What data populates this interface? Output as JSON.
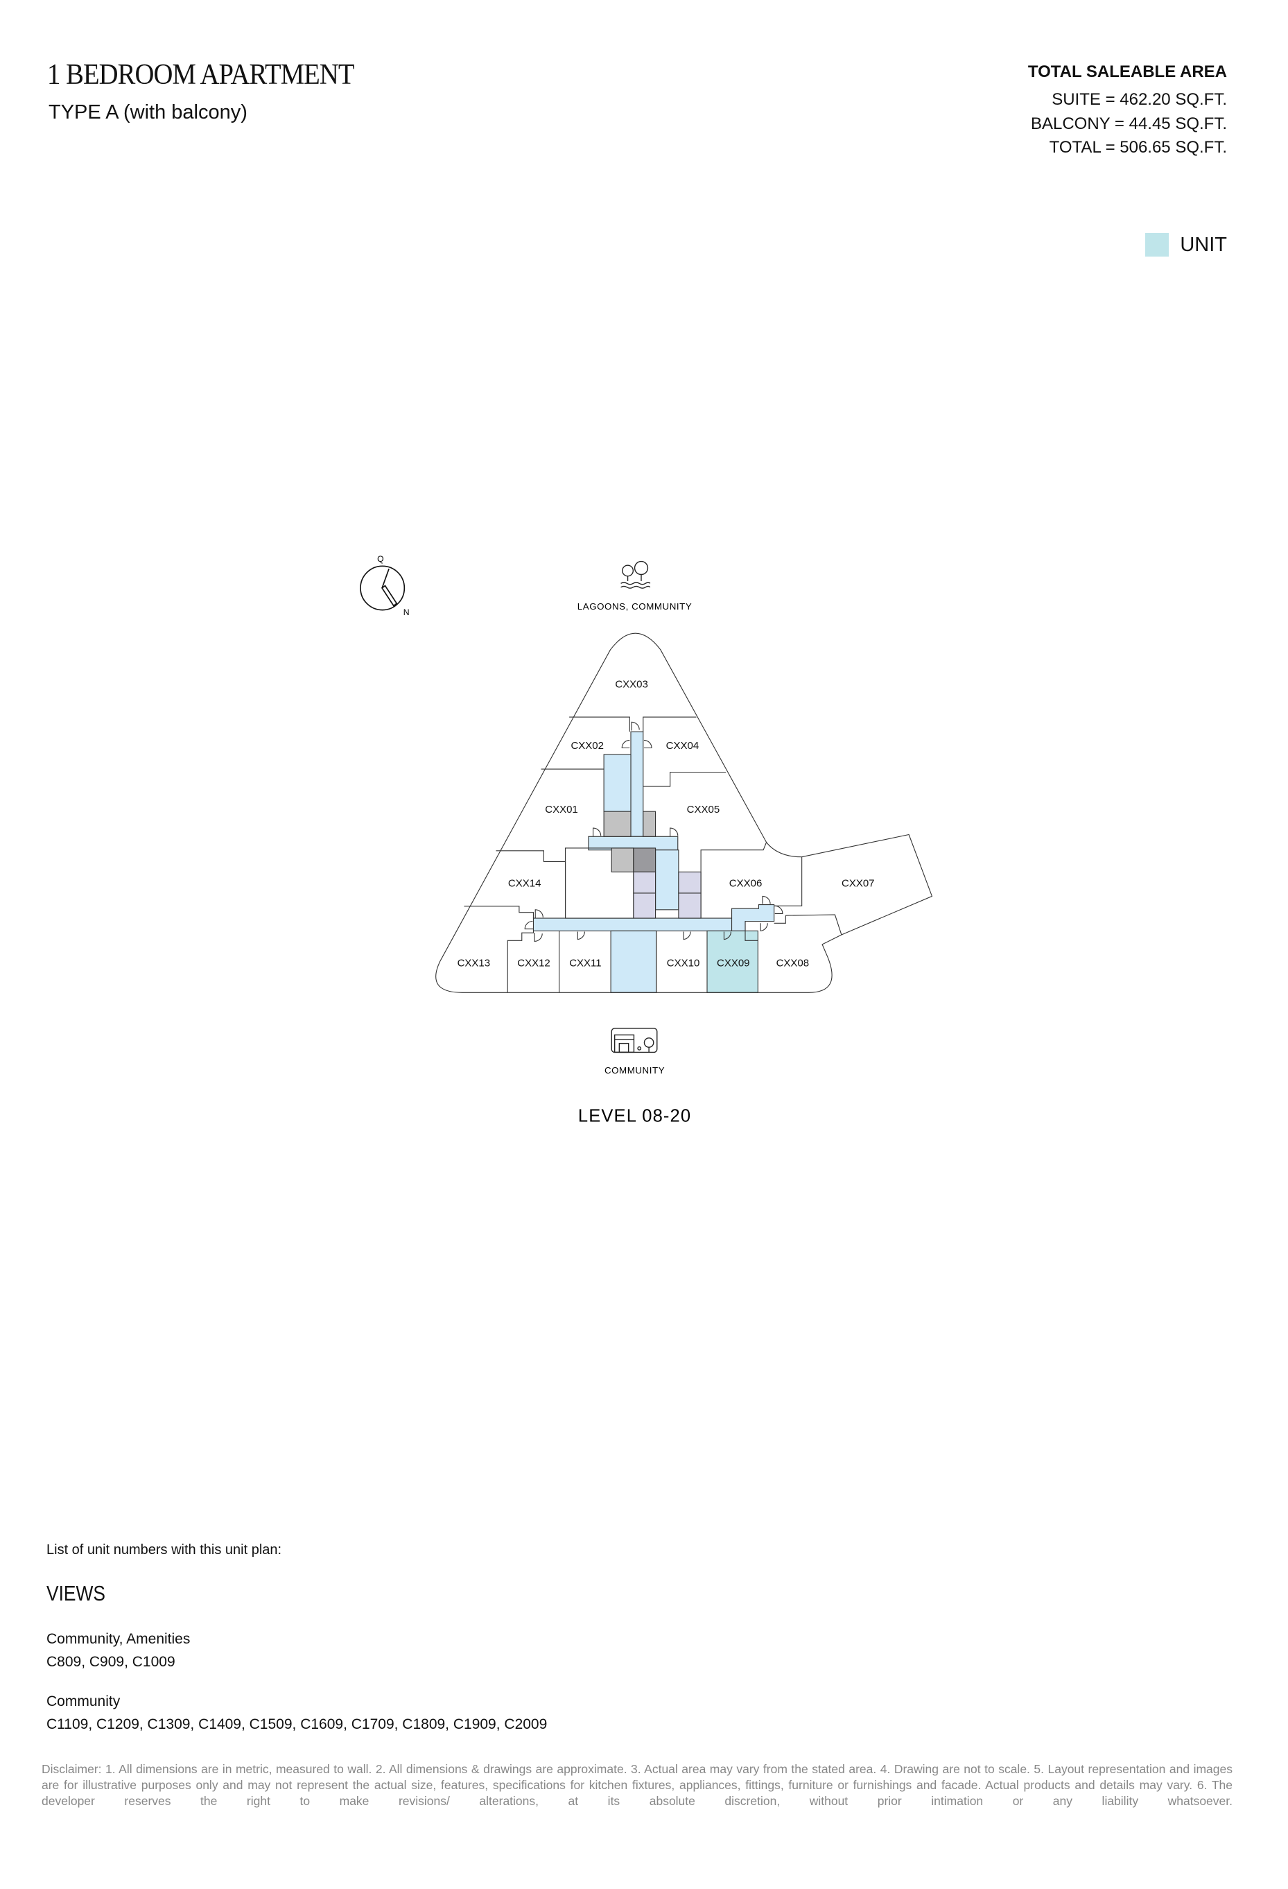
{
  "header": {
    "title": "1 BEDROOM APARTMENT",
    "subtitle": "TYPE A (with balcony)"
  },
  "area": {
    "heading": "TOTAL SALEABLE AREA",
    "suite": "SUITE = 462.20 SQ.FT.",
    "balcony": "BALCONY = 44.45 SQ.FT.",
    "total": "TOTAL = 506.65 SQ.FT."
  },
  "legend": {
    "label": "UNIT",
    "color": "#bfe5ea"
  },
  "plan": {
    "compass": {
      "top": "Q",
      "bottom": "N"
    },
    "top_view": {
      "label": "LAGOONS, COMMUNITY",
      "icon": "trees-water-icon"
    },
    "bottom_view": {
      "label": "COMMUNITY",
      "icon": "building-tree-icon"
    },
    "level": "LEVEL 08-20",
    "units": {
      "u01": "CXX01",
      "u02": "CXX02",
      "u03": "CXX03",
      "u04": "CXX04",
      "u05": "CXX05",
      "u06": "CXX06",
      "u07": "CXX07",
      "u08": "CXX08",
      "u09": "CXX09",
      "u10": "CXX10",
      "u11": "CXX11",
      "u12": "CXX12",
      "u13": "CXX13",
      "u14": "CXX14"
    },
    "highlighted_unit": "CXX09",
    "colors": {
      "corridor": "#cfe9f8",
      "unit": "#bfe5ea",
      "core": "#c2c2c2",
      "core_dark": "#9a9a9e",
      "lift": "#d8d8ea"
    }
  },
  "units_list": {
    "heading": "List of unit numbers with this unit plan:",
    "views_heading": "VIEWS",
    "groups": [
      {
        "view": "Community, Amenities",
        "units": "C809, C909, C1009"
      },
      {
        "view": "Community",
        "units": "C1109, C1209, C1309, C1409, C1509, C1609, C1709, C1809, C1909, C2009"
      }
    ]
  },
  "disclaimer": "Disclaimer: 1. All dimensions are in metric, measured to wall. 2. All dimensions & drawings are approximate. 3. Actual area may vary from the stated area. 4. Drawing are not to scale. 5. Layout representation and images are for illustrative purposes only and may not represent the actual size, features, specifications for kitchen fixtures, appliances, fittings, furniture or furnishings and facade. Actual products and details may vary. 6. The developer reserves the right to make revisions/ alterations, at its absolute discretion, without prior intimation or any liability whatsoever."
}
